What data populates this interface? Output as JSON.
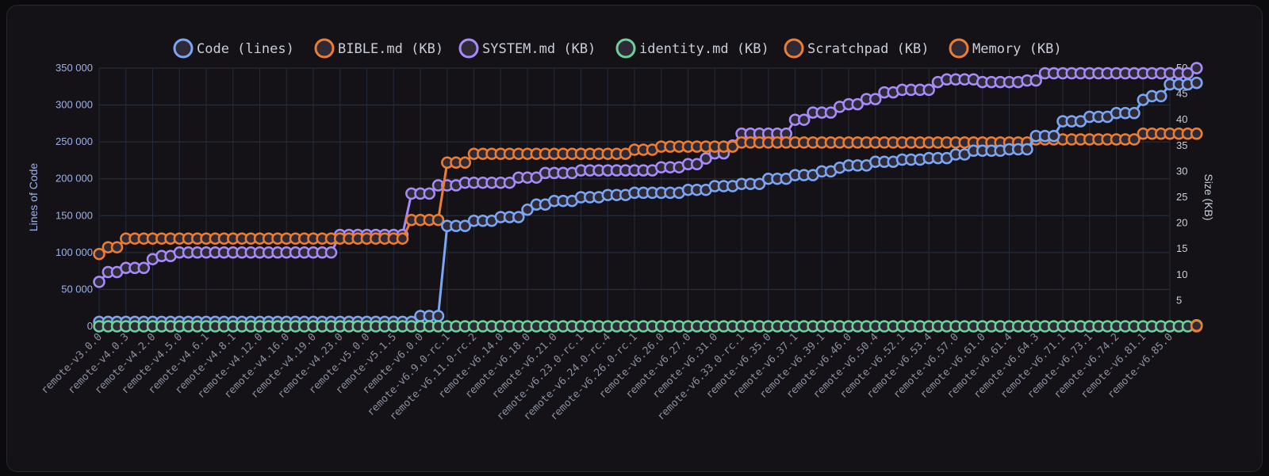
{
  "chart_data": {
    "type": "line",
    "legend_position": "top",
    "grid": true,
    "ylabel": "Lines of Code",
    "y2label": "Size (KB)",
    "ylim": [
      0,
      350000
    ],
    "y2lim": [
      0,
      50
    ],
    "y_ticks": [
      "0",
      "50 000",
      "100 000",
      "150 000",
      "200 000",
      "250 000",
      "300 000",
      "350 000"
    ],
    "y2_ticks": [
      "0",
      "5",
      "10",
      "15",
      "20",
      "25",
      "30",
      "35",
      "40",
      "45",
      "50"
    ],
    "x_tick_labels": [
      "remote-v3.0.0",
      "remote-v4.0.3",
      "remote-v4.2.0",
      "remote-v4.5.0",
      "remote-v4.6.1",
      "remote-v4.8.1",
      "remote-v4.12.0",
      "remote-v4.16.0",
      "remote-v4.19.0",
      "remote-v4.23.0",
      "remote-v5.0.0",
      "remote-v5.1.5",
      "remote-v6.0.0",
      "remote-v6.9.0-rc.1",
      "remote-v6.11.0-rc.2",
      "remote-v6.14.0",
      "remote-v6.18.0",
      "remote-v6.21.0",
      "remote-v6.23.0-rc.1",
      "remote-v6.24.0-rc.4",
      "remote-v6.26.0-rc.1",
      "remote-v6.26.0",
      "remote-v6.27.0",
      "remote-v6.31.0",
      "remote-v6.33.0-rc.1",
      "remote-v6.35.0",
      "remote-v6.37.1",
      "remote-v6.39.1",
      "remote-v6.46.0",
      "remote-v6.50.4",
      "remote-v6.52.1",
      "remote-v6.53.4",
      "remote-v6.57.0",
      "remote-v6.61.0",
      "remote-v6.61.4",
      "remote-v6.64.3",
      "remote-v6.71.1",
      "remote-v6.73.1",
      "remote-v6.74.2",
      "remote-v6.81.1",
      "remote-v6.85.0"
    ],
    "series": [
      {
        "name": "Code (lines)",
        "axis": "left",
        "color": "#7aa7f5",
        "steps": [
          [
            0,
            6000
          ],
          [
            12,
            14000
          ],
          [
            13,
            136000
          ],
          [
            14,
            143000
          ],
          [
            15,
            148000
          ],
          [
            16,
            158000
          ],
          [
            16.3,
            165000
          ],
          [
            17,
            170000
          ],
          [
            18,
            175000
          ],
          [
            19,
            178000
          ],
          [
            20,
            181000
          ],
          [
            22,
            185000
          ],
          [
            23,
            190000
          ],
          [
            24,
            193000
          ],
          [
            25,
            200000
          ],
          [
            26,
            205000
          ],
          [
            27,
            210000
          ],
          [
            27.6,
            215000
          ],
          [
            28,
            218000
          ],
          [
            29,
            223000
          ],
          [
            30,
            226000
          ],
          [
            31,
            228000
          ],
          [
            32,
            233000
          ],
          [
            32.5,
            238000
          ],
          [
            34,
            240000
          ],
          [
            34.8,
            258000
          ],
          [
            36,
            278000
          ],
          [
            37,
            284000
          ],
          [
            38,
            289000
          ],
          [
            39,
            307000
          ],
          [
            39.3,
            312000
          ],
          [
            40,
            328000
          ],
          [
            41,
            330000
          ]
        ]
      },
      {
        "name": "BIBLE.md (KB)",
        "axis": "right",
        "color": "#ed7d31",
        "steps": [
          [
            0,
            14
          ],
          [
            0.3,
            15.3
          ],
          [
            1,
            17
          ],
          [
            11.6,
            20.6
          ],
          [
            13,
            31.7
          ],
          [
            14,
            33.4
          ],
          [
            20,
            34.2
          ],
          [
            21,
            34.8
          ],
          [
            24,
            35.6
          ],
          [
            35,
            36.2
          ],
          [
            39,
            37.3
          ],
          [
            41,
            37.3
          ]
        ]
      },
      {
        "name": "SYSTEM.md (KB)",
        "axis": "right",
        "color": "#a78bfa",
        "steps": [
          [
            0,
            8.6
          ],
          [
            0.3,
            10.5
          ],
          [
            1,
            11.3
          ],
          [
            2,
            13
          ],
          [
            2.3,
            13.6
          ],
          [
            3,
            14.3
          ],
          [
            9,
            17.7
          ],
          [
            11.5,
            25.7
          ],
          [
            12.5,
            27.3
          ],
          [
            13.5,
            27.8
          ],
          [
            15.5,
            28.8
          ],
          [
            16.5,
            29.7
          ],
          [
            18,
            30.2
          ],
          [
            21,
            30.8
          ],
          [
            22,
            31.4
          ],
          [
            22.5,
            32.5
          ],
          [
            23,
            33.5
          ],
          [
            23.6,
            35
          ],
          [
            24,
            37.3
          ],
          [
            26,
            40
          ],
          [
            26.5,
            41.4
          ],
          [
            27.4,
            42.5
          ],
          [
            28,
            43
          ],
          [
            28.4,
            44
          ],
          [
            29.2,
            45.3
          ],
          [
            30,
            45.8
          ],
          [
            31.2,
            47.3
          ],
          [
            31.5,
            47.8
          ],
          [
            33,
            47.3
          ],
          [
            34.6,
            47.6
          ],
          [
            35.2,
            49
          ],
          [
            41,
            50
          ]
        ]
      },
      {
        "name": "identity.md (KB)",
        "axis": "right",
        "color": "#6ad39a",
        "steps": [
          [
            0,
            0
          ],
          [
            41,
            0.2
          ]
        ]
      },
      {
        "name": "Scratchpad (KB)",
        "axis": "right",
        "color": "#ed7d31",
        "steps": [
          [
            41,
            0
          ]
        ]
      },
      {
        "name": "Memory (KB)",
        "axis": "right",
        "color": "#ed7d31",
        "steps": [
          [
            41,
            0.1
          ]
        ]
      }
    ]
  }
}
